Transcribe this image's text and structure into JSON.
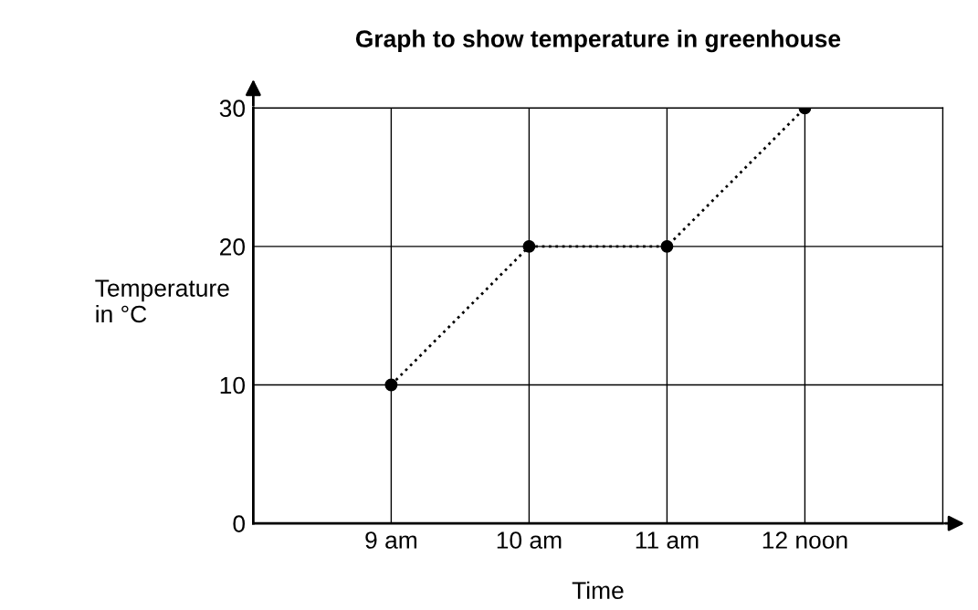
{
  "chart_data": {
    "type": "line",
    "title": "Graph to show temperature in greenhouse",
    "xlabel": "Time",
    "ylabel": "Temperature\nin °C",
    "x": [
      9,
      10,
      11,
      12
    ],
    "series": [
      {
        "color": "#000000",
        "values": [
          10,
          20,
          20,
          30
        ]
      }
    ],
    "xlim": [
      8,
      13
    ],
    "xticks": [
      {
        "value": 9,
        "label": "9 am"
      },
      {
        "value": 10,
        "label": "10 am"
      },
      {
        "value": 11,
        "label": "11 am"
      },
      {
        "value": 12,
        "label": "12 noon"
      }
    ],
    "ylim": [
      0,
      30
    ],
    "yticks": [
      0,
      10,
      20,
      30
    ],
    "grid": true,
    "marker": "circle",
    "line_style": "dotted"
  }
}
